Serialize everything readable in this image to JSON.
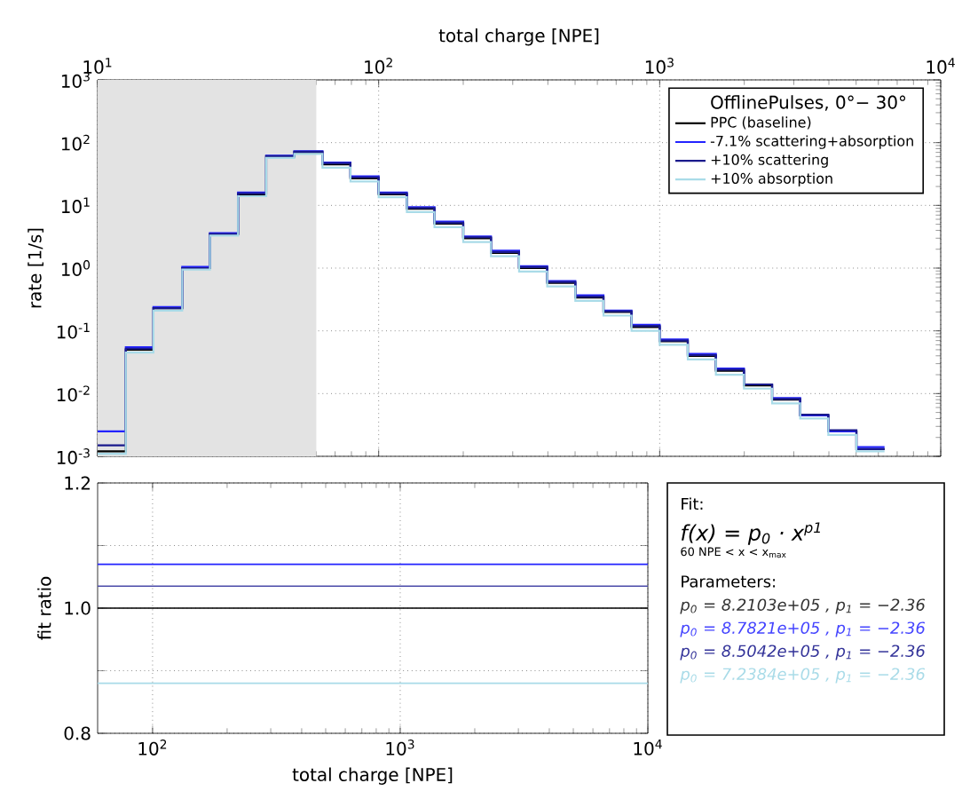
{
  "chart_data": [
    {
      "type": "histogram",
      "xlabel": "total charge [NPE]",
      "ylabel": "rate [1/s]",
      "legend_title": "OfflinePulses,  0°−  30°",
      "log": "xy",
      "grid": true,
      "legend": "top right",
      "xlim": [
        10,
        10000
      ],
      "ylim": [
        0.001,
        1000
      ],
      "xticks": [
        {
          "value": 10,
          "label": "10$^{1}$"
        },
        {
          "value": 100,
          "label": "10$^{2}$"
        },
        {
          "value": 1000,
          "label": "10$^{3}$"
        },
        {
          "value": 10000,
          "label": "10$^{4}$"
        }
      ],
      "yticks": [
        {
          "value": 0.001,
          "label": "10$^{-3}$"
        },
        {
          "value": 0.01,
          "label": "10$^{-2}$"
        },
        {
          "value": 0.1,
          "label": "10$^{-1}$"
        },
        {
          "value": 1,
          "label": "10$^{0}$"
        },
        {
          "value": 10,
          "label": "10$^{1}$"
        },
        {
          "value": 100,
          "label": "10$^{2}$"
        },
        {
          "value": 1000,
          "label": "10$^{3}$"
        }
      ],
      "bands": [
        {
          "axis": "x",
          "from": 10,
          "to": 60,
          "color": "#e3e3e3"
        }
      ],
      "bins": [
        10,
        12.6,
        15.8,
        20,
        25.1,
        31.6,
        39.8,
        50.1,
        63.1,
        79.4,
        100,
        126,
        158,
        200,
        251,
        316,
        398,
        501,
        631,
        794,
        1000,
        1259,
        1585,
        1995,
        2512,
        3162,
        3981,
        5012,
        6310
      ],
      "series": [
        {
          "name": "PPC (baseline)",
          "color": "#000000",
          "values": [
            0.0012,
            0.05,
            0.23,
            1.0,
            3.5,
            15,
            60,
            70,
            45,
            27,
            15,
            8.8,
            5.1,
            3.0,
            1.75,
            1.0,
            0.58,
            0.34,
            0.2,
            0.115,
            0.068,
            0.04,
            0.023,
            0.0135,
            0.008,
            0.0045,
            0.0025,
            0.0013
          ]
        },
        {
          "name": "-7.1% scattering+absorption",
          "color": "#2323ff",
          "values": [
            0.0025,
            0.055,
            0.24,
            1.05,
            3.6,
            16,
            62,
            73,
            48,
            29,
            16,
            9.4,
            5.5,
            3.2,
            1.9,
            1.07,
            0.62,
            0.37,
            0.21,
            0.125,
            0.073,
            0.043,
            0.025,
            0.014,
            0.0085,
            0.0045,
            0.0025,
            0.0014
          ]
        },
        {
          "name": "+10% scattering",
          "color": "#1a1a8c",
          "values": [
            0.0015,
            0.052,
            0.23,
            1.0,
            3.5,
            15.5,
            61,
            72,
            47,
            28,
            15.5,
            9.1,
            5.3,
            3.1,
            1.8,
            1.04,
            0.6,
            0.35,
            0.205,
            0.12,
            0.07,
            0.041,
            0.024,
            0.014,
            0.0082,
            0.0046,
            0.0026,
            0.0013
          ]
        },
        {
          "name": "+10% absorption",
          "color": "#a9dbe8",
          "values": [
            0.0011,
            0.045,
            0.21,
            0.95,
            3.3,
            14,
            57,
            66,
            40,
            24,
            13.5,
            7.8,
            4.5,
            2.6,
            1.55,
            0.88,
            0.51,
            0.3,
            0.175,
            0.1,
            0.06,
            0.035,
            0.02,
            0.012,
            0.007,
            0.004,
            0.0022,
            0.0012
          ]
        }
      ]
    },
    {
      "type": "line",
      "xlabel": "total charge [NPE]",
      "ylabel": "fit ratio",
      "log": "x",
      "grid": true,
      "xlim": [
        60,
        10000
      ],
      "ylim": [
        0.8,
        1.2
      ],
      "xticks": [
        {
          "value": 100,
          "label": "10$^{2}$"
        },
        {
          "value": 1000,
          "label": "10$^{3}$"
        },
        {
          "value": 10000,
          "label": "10$^{4}$"
        }
      ],
      "yticks": [
        {
          "value": 0.8,
          "label": "0.8"
        },
        {
          "value": 0.9,
          "label": null
        },
        {
          "value": 1.0,
          "label": "1.0"
        },
        {
          "value": 1.1,
          "label": null
        },
        {
          "value": 1.2,
          "label": "1.2"
        }
      ],
      "ref_lines": [
        {
          "axis": "y",
          "value": 1.0,
          "color": "#000000"
        },
        {
          "axis": "y",
          "value": 1.07,
          "color": "#2323ff"
        },
        {
          "axis": "y",
          "value": 1.035,
          "color": "#4a4aa8"
        },
        {
          "axis": "y",
          "value": 0.88,
          "color": "#a9dbe8"
        }
      ]
    },
    {
      "type": "other",
      "annotations": [
        "Fit:",
        "f(x) = p$_{0}$ · x$^{p1}$",
        "60 NPE  <  x  <  x$_{max}$",
        "Parameters:",
        "p$_{0}$ = 8.2103e+05 , p$_{1}$ = −2.36",
        "p$_{0}$ = 8.7821e+05 , p$_{1}$ = −2.36",
        "p$_{0}$ = 8.5042e+05 , p$_{1}$ = −2.36",
        "p$_{0}$ = 7.2384e+05 , p$_{1}$ = −2.36"
      ],
      "colors": [
        "#000000",
        "#000000",
        "#000000",
        "#000000",
        "#333333",
        "#4444ff",
        "#333399",
        "#a9dbe8"
      ]
    }
  ]
}
